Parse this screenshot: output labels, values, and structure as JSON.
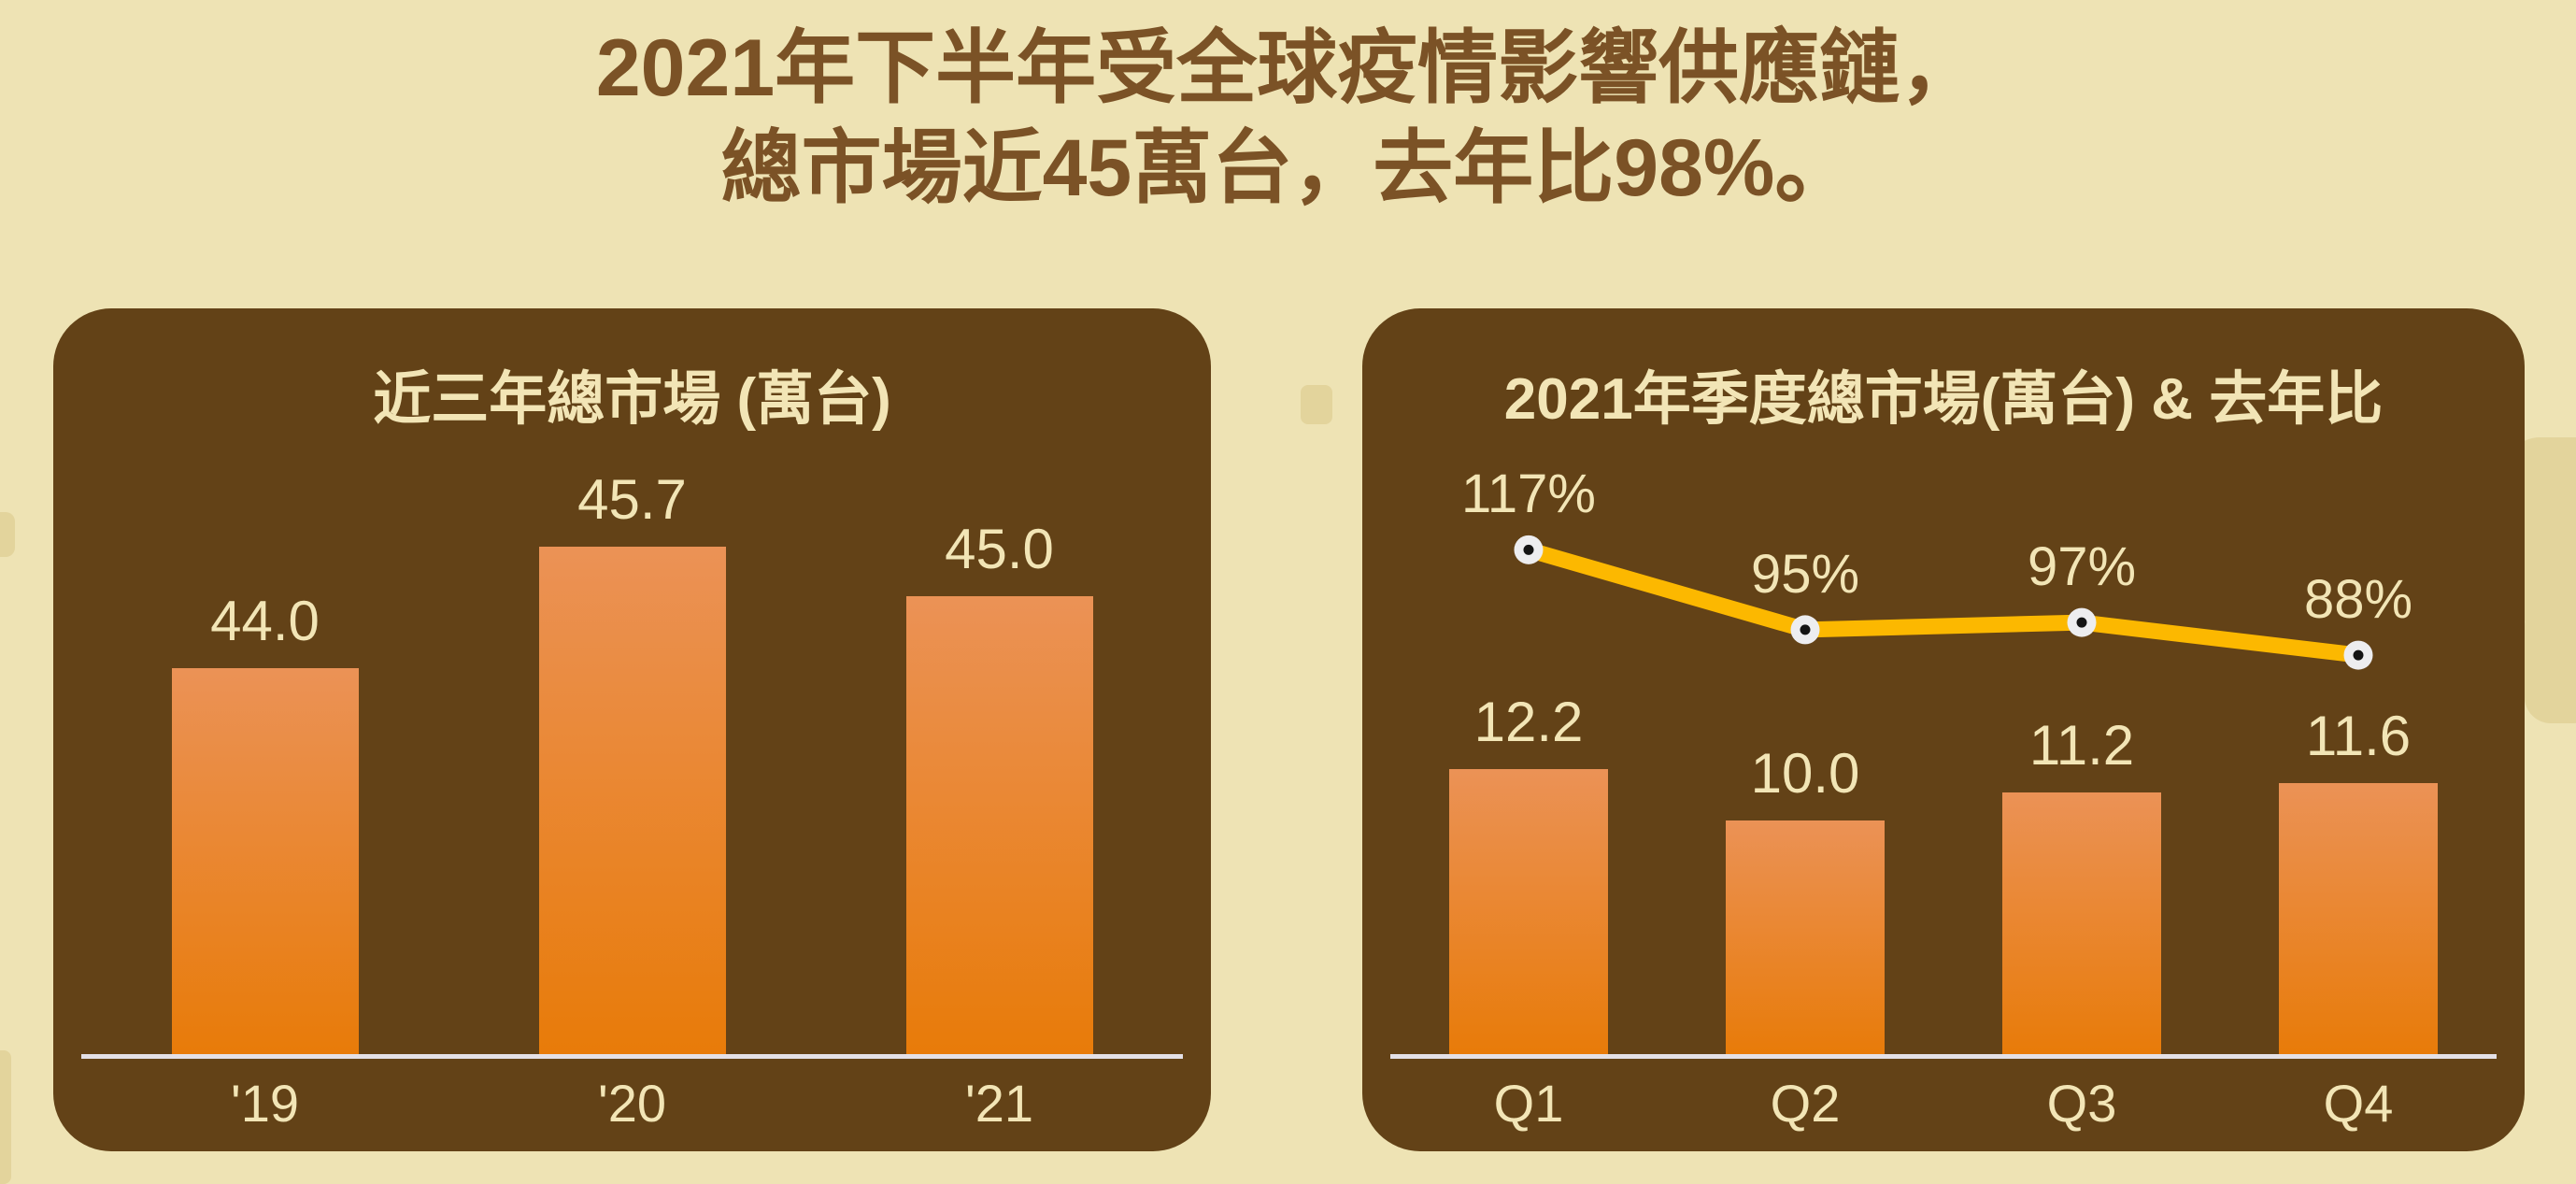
{
  "title": {
    "line1": "2021年下半年受全球疫情影響供應鏈，",
    "line2": "總市場近45萬台，去年比98%。"
  },
  "colors": {
    "background": "#eee3b4",
    "panel": "#634217",
    "title_text": "#7b5226",
    "cream_text": "#f2e5b6",
    "bar_gradient_top": "#eb9256",
    "bar_gradient_bottom": "#e87b09",
    "line": "#fcb800",
    "marker_fill": "#ededef",
    "marker_dot": "#141414",
    "baseline": "#e4e0e6",
    "watermark": "#e3d49c"
  },
  "chart_data": [
    {
      "type": "bar",
      "title": "近三年總市場 (萬台)",
      "categories": [
        "'19",
        "'20",
        "'21"
      ],
      "values": [
        44.0,
        45.7,
        45.0
      ],
      "value_labels": [
        "44.0",
        "45.7",
        "45.0"
      ],
      "ylim": [
        38.6,
        46.3
      ],
      "grid": false,
      "legend": "none"
    },
    {
      "type": "bar+line",
      "title": "2021年季度總市場(萬台) & 去年比",
      "categories": [
        "Q1",
        "Q2",
        "Q3",
        "Q4"
      ],
      "series": [
        {
          "name": "總市場(萬台)",
          "type": "bar",
          "values": [
            12.2,
            10.0,
            11.2,
            11.6
          ],
          "value_labels": [
            "12.2",
            "10.0",
            "11.2",
            "11.6"
          ],
          "ylim": [
            0,
            22.4
          ]
        },
        {
          "name": "去年比",
          "type": "line",
          "values": [
            117,
            95,
            97,
            88
          ],
          "value_labels": [
            "117%",
            "95%",
            "97%",
            "88%"
          ],
          "ylim": [
            60,
            150
          ]
        }
      ],
      "grid": false,
      "legend": "none"
    }
  ]
}
